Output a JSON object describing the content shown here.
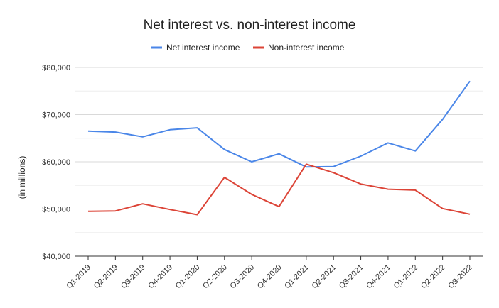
{
  "chart_data": {
    "type": "line",
    "title": "Net interest vs. non-interest income",
    "ylabel": "(in millions)",
    "xlabel": "",
    "ylim": [
      40000,
      80000
    ],
    "yticks": [
      "$40,000",
      "$50,000",
      "$60,000",
      "$70,000",
      "$80,000"
    ],
    "ytick_values": [
      40000,
      50000,
      60000,
      70000,
      80000
    ],
    "grid": true,
    "legend_position": "top",
    "categories": [
      "Q1-2019",
      "Q2-2019",
      "Q3-2019",
      "Q4-2019",
      "Q1-2020",
      "Q2-2020",
      "Q3-2020",
      "Q4-2020",
      "Q1-2021",
      "Q2-2021",
      "Q3-2021",
      "Q4-2021",
      "Q1-2022",
      "Q2-2022",
      "Q3-2022"
    ],
    "series": [
      {
        "name": "Net interest income",
        "color": "#4a86e8",
        "values": [
          66500,
          66300,
          65300,
          66800,
          67200,
          62600,
          60000,
          61700,
          58900,
          59000,
          61200,
          64000,
          62300,
          69000,
          77100
        ]
      },
      {
        "name": "Non-interest income",
        "color": "#dc4437",
        "values": [
          49500,
          49600,
          51100,
          49900,
          48800,
          56700,
          53100,
          50500,
          59500,
          57700,
          55300,
          54200,
          54000,
          50100,
          48900
        ]
      }
    ]
  }
}
